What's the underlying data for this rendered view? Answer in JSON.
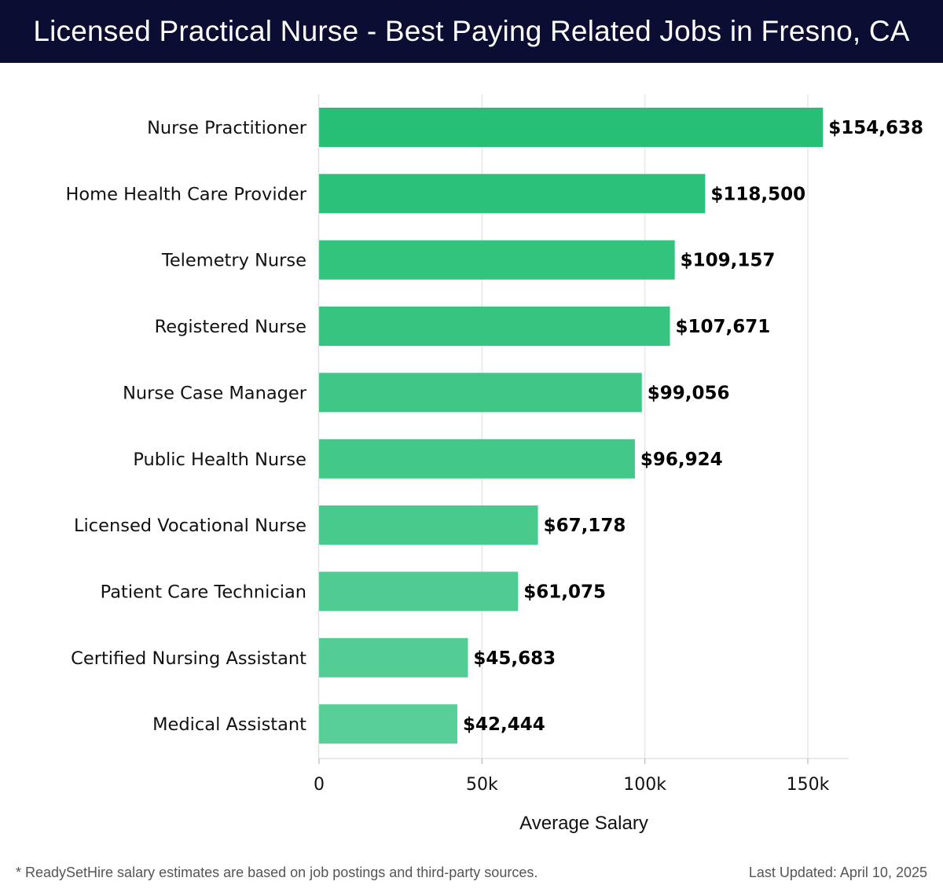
{
  "header": {
    "title": "Licensed Practical Nurse - Best Paying Related Jobs in Fresno, CA"
  },
  "chart_data": {
    "type": "bar",
    "orientation": "horizontal",
    "categories": [
      "Nurse Practitioner",
      "Home Health Care Provider",
      "Telemetry Nurse",
      "Registered Nurse",
      "Nurse Case Manager",
      "Public Health Nurse",
      "Licensed Vocational Nurse",
      "Patient Care Technician",
      "Certified Nursing Assistant",
      "Medical Assistant"
    ],
    "values": [
      154638,
      118500,
      109157,
      107671,
      99056,
      96924,
      67178,
      61075,
      45683,
      42444
    ],
    "value_labels": [
      "$154,638",
      "$118,500",
      "$109,157",
      "$107,671",
      "$99,056",
      "$96,924",
      "$67,178",
      "$61,075",
      "$45,683",
      "$42,444"
    ],
    "xlabel": "Average Salary",
    "ylabel": "",
    "xlim": [
      0,
      162500
    ],
    "xticks": [
      0,
      50000,
      100000,
      150000
    ],
    "xtick_labels": [
      "0",
      "50k",
      "100k",
      "150k"
    ],
    "grid": "vertical",
    "bar_color_top": "#27bf76",
    "bar_color_bottom": "#58cf97"
  },
  "footer": {
    "note": "* ReadySetHire salary estimates are based on job postings and third-party sources.",
    "updated": "Last Updated: April 10, 2025"
  }
}
